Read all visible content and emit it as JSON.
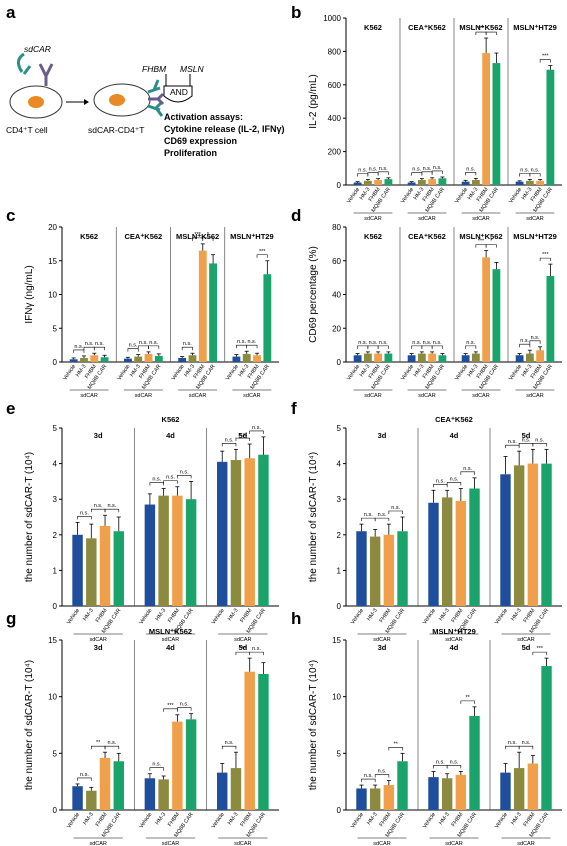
{
  "colors": {
    "vehicle": "#1f4e9c",
    "hm3": "#8c8a3f",
    "fhbm": "#f0a04a",
    "m2": "#1aa36a",
    "cell": "#e98a25",
    "receptor_teal": "#2a8f86",
    "receptor_purple": "#6a5d8e"
  },
  "diagram": {
    "label": "a",
    "sdcar": "sdCAR",
    "cell1": "CD4⁺T cell",
    "cell2": "sdCAR-CD4⁺T",
    "fhbm": "FHBM",
    "mslnlbl": "MSLN",
    "and": "AND",
    "assay_title": "Activation assays:",
    "assay1": "Cytokine release (IL-2, IFNγ)",
    "assay2": "CD69 expression",
    "assay3": "Proliferation"
  },
  "bar_labels": [
    "Vehicle",
    "HM-3",
    "FHBM",
    "MQ8B CAR"
  ],
  "group_label": "sdCAR",
  "chart_data": [
    {
      "id": "b",
      "type": "bar",
      "ylabel": "IL-2 (pg/mL)",
      "ylim": [
        0,
        1000
      ],
      "yticks": [
        0,
        200,
        400,
        600,
        800,
        1000
      ],
      "groups": [
        "K562",
        "CEA⁺K562",
        "MSLN⁺K562",
        "MSLN⁺HT29"
      ],
      "values": [
        [
          15,
          25,
          30,
          35
        ],
        [
          15,
          30,
          35,
          40
        ],
        [
          20,
          30,
          790,
          730
        ],
        [
          20,
          25,
          25,
          690
        ]
      ],
      "errors": [
        [
          5,
          8,
          8,
          8
        ],
        [
          5,
          8,
          8,
          8
        ],
        [
          8,
          10,
          90,
          60
        ],
        [
          5,
          8,
          8,
          25
        ]
      ],
      "sig": [
        [
          [
            "n.s.",
            0,
            1
          ],
          [
            "n.s.",
            1,
            2
          ],
          [
            "n.s.",
            2,
            3
          ]
        ],
        [
          [
            "n.s.",
            0,
            1
          ],
          [
            "n.s.",
            1,
            2
          ],
          [
            "n.s.",
            2,
            3
          ]
        ],
        [
          [
            "n.s.",
            0,
            1
          ],
          [
            "***",
            1,
            2
          ],
          [
            "*",
            2,
            3
          ]
        ],
        [
          [
            "n.s.",
            0,
            1
          ],
          [
            "n.s.",
            1,
            2
          ],
          [
            "***",
            2,
            3
          ]
        ]
      ]
    },
    {
      "id": "c",
      "type": "bar",
      "ylabel": "IFNγ (ng/mL)",
      "ylim": [
        0,
        20
      ],
      "yticks": [
        0,
        5,
        10,
        15,
        20
      ],
      "groups": [
        "K562",
        "CEA⁺K562",
        "MSLN⁺K562",
        "MSLN⁺HT29"
      ],
      "values": [
        [
          0.4,
          0.6,
          1.0,
          0.7
        ],
        [
          0.5,
          0.8,
          1.2,
          0.9
        ],
        [
          0.6,
          1.0,
          16.5,
          14.6
        ],
        [
          0.8,
          1.2,
          1.0,
          13.0
        ]
      ],
      "errors": [
        [
          0.2,
          0.3,
          0.3,
          0.3
        ],
        [
          0.2,
          0.3,
          0.3,
          0.3
        ],
        [
          0.2,
          0.3,
          1.0,
          1.3
        ],
        [
          0.3,
          0.4,
          0.3,
          2.0
        ]
      ],
      "sig": [
        [
          [
            "n.s.",
            0,
            1
          ],
          [
            "n.s.",
            1,
            2
          ],
          [
            "n.s.",
            2,
            3
          ]
        ],
        [
          [
            "n.s.",
            0,
            1
          ],
          [
            "n.s.",
            1,
            2
          ],
          [
            "n.s.",
            2,
            3
          ]
        ],
        [
          [
            "n.s.",
            0,
            1
          ],
          [
            "***",
            1,
            2
          ],
          [
            "*",
            2,
            3
          ]
        ],
        [
          [
            "n.s.",
            0,
            1
          ],
          [
            "n.s.",
            1,
            2
          ],
          [
            "***",
            2,
            3
          ]
        ]
      ]
    },
    {
      "id": "d",
      "type": "bar",
      "ylabel": "CD69 percentage (%)",
      "ylim": [
        0,
        80
      ],
      "yticks": [
        0,
        20,
        40,
        60,
        80
      ],
      "groups": [
        "K562",
        "CEA⁺K562",
        "MSLN⁺K562",
        "MSLN⁺HT29"
      ],
      "values": [
        [
          4,
          5,
          5,
          5
        ],
        [
          4,
          5,
          5,
          4
        ],
        [
          4,
          5,
          62,
          55
        ],
        [
          4,
          5,
          7,
          51
        ]
      ],
      "errors": [
        [
          1,
          1,
          1,
          1
        ],
        [
          1,
          1,
          1,
          1
        ],
        [
          1,
          1,
          4,
          4
        ],
        [
          1,
          2,
          2,
          7
        ]
      ],
      "sig": [
        [
          [
            "n.s.",
            0,
            1
          ],
          [
            "n.s.",
            1,
            2
          ],
          [
            "n.s.",
            2,
            3
          ]
        ],
        [
          [
            "n.s.",
            0,
            1
          ],
          [
            "n.s.",
            1,
            2
          ],
          [
            "n.s.",
            2,
            3
          ]
        ],
        [
          [
            "n.s.",
            0,
            1
          ],
          [
            "***",
            1,
            2
          ],
          [
            "*",
            2,
            3
          ]
        ],
        [
          [
            "n.s.",
            0,
            1
          ],
          [
            "n.s.",
            1,
            2
          ],
          [
            "***",
            2,
            3
          ]
        ]
      ]
    },
    {
      "id": "e",
      "type": "bar",
      "title": "K562",
      "ylabel": "the number of sdCAR-T (10⁴)",
      "ylim": [
        0,
        5
      ],
      "yticks": [
        0,
        1,
        2,
        3,
        4,
        5
      ],
      "groups": [
        "3d",
        "4d",
        "5d"
      ],
      "values": [
        [
          2.0,
          1.9,
          2.25,
          2.1
        ],
        [
          2.85,
          3.1,
          3.1,
          3.0
        ],
        [
          4.05,
          4.1,
          4.15,
          4.25
        ]
      ],
      "errors": [
        [
          0.35,
          0.4,
          0.3,
          0.4
        ],
        [
          0.3,
          0.2,
          0.25,
          0.5
        ],
        [
          0.3,
          0.3,
          0.4,
          0.5
        ]
      ],
      "sig": [
        [
          [
            "n.s.",
            0,
            1
          ],
          [
            "n.s.",
            1,
            2
          ],
          [
            "n.s.",
            2,
            3
          ]
        ],
        [
          [
            "n.s.",
            0,
            1
          ],
          [
            "n.s.",
            1,
            2
          ],
          [
            "n.s.",
            2,
            3
          ]
        ],
        [
          [
            "n.s.",
            0,
            1
          ],
          [
            "n.s.",
            1,
            2
          ],
          [
            "n.s.",
            2,
            3
          ]
        ]
      ]
    },
    {
      "id": "f",
      "type": "bar",
      "title": "CEA⁺K562",
      "ylabel": "the number of sdCAR-T (10⁴)",
      "ylim": [
        0,
        5
      ],
      "yticks": [
        0,
        1,
        2,
        3,
        4,
        5
      ],
      "groups": [
        "3d",
        "4d",
        "5d"
      ],
      "values": [
        [
          2.1,
          1.95,
          2.0,
          2.1
        ],
        [
          2.9,
          3.05,
          2.95,
          3.3
        ],
        [
          3.7,
          3.95,
          4.0,
          4.0
        ]
      ],
      "errors": [
        [
          0.2,
          0.2,
          0.3,
          0.4
        ],
        [
          0.35,
          0.2,
          0.35,
          0.3
        ],
        [
          0.5,
          0.4,
          0.4,
          0.4
        ]
      ],
      "sig": [
        [
          [
            "n.s.",
            0,
            1
          ],
          [
            "n.s.",
            1,
            2
          ],
          [
            "n.s.",
            2,
            3
          ]
        ],
        [
          [
            "n.s.",
            0,
            1
          ],
          [
            "n.s.",
            1,
            2
          ],
          [
            "n.s.",
            2,
            3
          ]
        ],
        [
          [
            "n.s.",
            0,
            1
          ],
          [
            "n.s.",
            1,
            2
          ],
          [
            "n.s.",
            2,
            3
          ]
        ]
      ]
    },
    {
      "id": "g",
      "type": "bar",
      "title": "MSLN⁺K562",
      "ylabel": "the number of sdCAR-T (10⁴)",
      "ylim": [
        0,
        15
      ],
      "yticks": [
        0,
        5,
        10,
        15
      ],
      "groups": [
        "3d",
        "4d",
        "5d"
      ],
      "values": [
        [
          2.1,
          1.7,
          4.6,
          4.3
        ],
        [
          2.8,
          2.7,
          7.8,
          8.0
        ],
        [
          3.3,
          3.7,
          12.2,
          12.0
        ]
      ],
      "errors": [
        [
          0.2,
          0.3,
          0.5,
          0.7
        ],
        [
          0.4,
          0.3,
          0.6,
          0.5
        ],
        [
          0.8,
          1.4,
          1.2,
          1.0
        ]
      ],
      "sig": [
        [
          [
            "n.s.",
            0,
            1
          ],
          [
            "**",
            1,
            2
          ],
          [
            "n.s.",
            2,
            3
          ]
        ],
        [
          [
            "n.s.",
            0,
            1
          ],
          [
            "***",
            1,
            2
          ],
          [
            "n.s.",
            2,
            3
          ]
        ],
        [
          [
            "n.s.",
            0,
            1
          ],
          [
            "***",
            1,
            2
          ],
          [
            "n.s.",
            2,
            3
          ]
        ]
      ]
    },
    {
      "id": "h",
      "type": "bar",
      "title": "MSLN⁺HT29",
      "ylabel": "the number of sdCAR-T (10⁴)",
      "ylim": [
        0,
        15
      ],
      "yticks": [
        0,
        5,
        10,
        15
      ],
      "groups": [
        "3d",
        "4d",
        "5d"
      ],
      "values": [
        [
          1.9,
          1.9,
          2.2,
          4.3
        ],
        [
          2.9,
          2.8,
          3.1,
          8.3
        ],
        [
          3.3,
          3.7,
          4.1,
          12.7
        ]
      ],
      "errors": [
        [
          0.3,
          0.3,
          0.4,
          0.7
        ],
        [
          0.5,
          0.4,
          0.3,
          0.8
        ],
        [
          0.8,
          1.4,
          0.7,
          0.7
        ]
      ],
      "sig": [
        [
          [
            "n.s.",
            0,
            1
          ],
          [
            "n.s.",
            1,
            2
          ],
          [
            "**",
            2,
            3
          ]
        ],
        [
          [
            "n.s.",
            0,
            1
          ],
          [
            "n.s.",
            1,
            2
          ],
          [
            "**",
            2,
            3
          ]
        ],
        [
          [
            "n.s.",
            0,
            1
          ],
          [
            "n.s.",
            1,
            2
          ],
          [
            "***",
            2,
            3
          ]
        ]
      ]
    }
  ]
}
